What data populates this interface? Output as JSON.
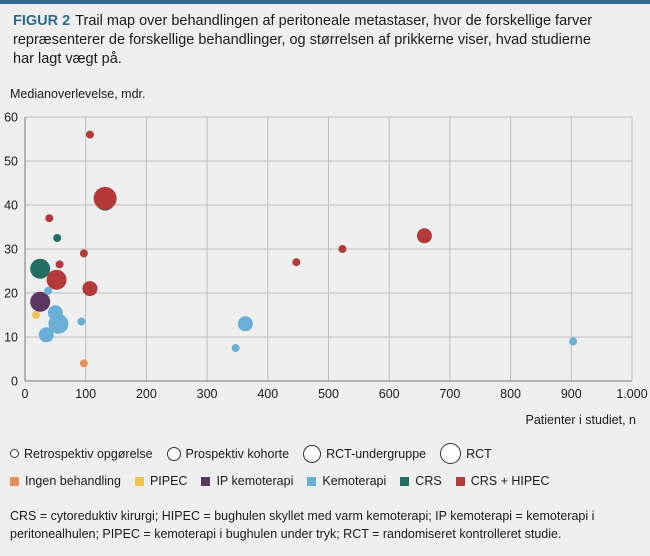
{
  "caption": {
    "figure_label": "FIGUR 2",
    "text": "Trail map over behandlingen af peritoneale metastaser, hvor de forskellige farver repræsenterer de forskellige behandlinger, og størrelsen af prikkerne viser, hvad studierne har lagt vægt på."
  },
  "footnote": "CRS = cytoreduktiv kirurgi; HIPEC = bughulen skyllet med varm kemoterapi; IP kemoterapi = kemoterapi i peritonealhulen; PIPEC = kemoterapi i bughulen under tryk; RCT = randomiseret kontrolleret studie.",
  "colors": {
    "Ingen behandling": "#e8915a",
    "PIPEC": "#f0c453",
    "IP kemoterapi": "#5a3663",
    "Kemoterapi": "#6aafd6",
    "CRS": "#236e60",
    "CRS + HIPEC": "#b43a3a"
  },
  "chart_data": {
    "type": "scatter",
    "xlabel": "Patienter i studiet, n",
    "ylabel": "Medianoverlevelse, mdr.",
    "xlim": [
      0,
      1000
    ],
    "ylim": [
      0,
      60
    ],
    "x_ticks": [
      "0",
      "100",
      "200",
      "300",
      "400",
      "500",
      "600",
      "700",
      "800",
      "900",
      "1.000"
    ],
    "y_ticks": [
      "0",
      "10",
      "20",
      "30",
      "40",
      "50",
      "60"
    ],
    "grid": true,
    "size_legend": [
      {
        "label": "Retrospektiv opgørelse",
        "size": 1
      },
      {
        "label": "Prospektiv kohorte",
        "size": 2
      },
      {
        "label": "RCT-undergruppe",
        "size": 3
      },
      {
        "label": "RCT",
        "size": 4
      }
    ],
    "color_legend": [
      "Ingen behandling",
      "PIPEC",
      "IP kemoterapi",
      "Kemoterapi",
      "CRS",
      "CRS + HIPEC"
    ],
    "points": [
      {
        "x": 107,
        "y": 56,
        "size": 1,
        "treatment": "CRS + HIPEC"
      },
      {
        "x": 40,
        "y": 37,
        "size": 1,
        "treatment": "CRS + HIPEC"
      },
      {
        "x": 97,
        "y": 29,
        "size": 1,
        "treatment": "CRS + HIPEC"
      },
      {
        "x": 57,
        "y": 26.5,
        "size": 1,
        "treatment": "CRS + HIPEC"
      },
      {
        "x": 447,
        "y": 27,
        "size": 1,
        "treatment": "CRS + HIPEC"
      },
      {
        "x": 523,
        "y": 30,
        "size": 1,
        "treatment": "CRS + HIPEC"
      },
      {
        "x": 658,
        "y": 33,
        "size": 2,
        "treatment": "CRS + HIPEC"
      },
      {
        "x": 107,
        "y": 21,
        "size": 2,
        "treatment": "CRS + HIPEC"
      },
      {
        "x": 52,
        "y": 23,
        "size": 3,
        "treatment": "CRS + HIPEC"
      },
      {
        "x": 53,
        "y": 32.5,
        "size": 1,
        "treatment": "CRS"
      },
      {
        "x": 132,
        "y": 41,
        "size": 3,
        "treatment": "CRS"
      },
      {
        "x": 132,
        "y": 41.5,
        "size": 4,
        "treatment": "CRS + HIPEC"
      },
      {
        "x": 25,
        "y": 25.5,
        "size": 3,
        "treatment": "CRS"
      },
      {
        "x": 25,
        "y": 18,
        "size": 3,
        "treatment": "IP kemoterapi"
      },
      {
        "x": 18,
        "y": 15,
        "size": 1,
        "treatment": "PIPEC"
      },
      {
        "x": 38,
        "y": 20.5,
        "size": 1,
        "treatment": "Kemoterapi"
      },
      {
        "x": 50,
        "y": 15.5,
        "size": 2,
        "treatment": "Kemoterapi"
      },
      {
        "x": 55,
        "y": 13,
        "size": 3,
        "treatment": "Kemoterapi"
      },
      {
        "x": 35,
        "y": 10.5,
        "size": 2,
        "treatment": "Kemoterapi"
      },
      {
        "x": 93,
        "y": 13.5,
        "size": 1,
        "treatment": "Kemoterapi"
      },
      {
        "x": 363,
        "y": 13,
        "size": 2,
        "treatment": "Kemoterapi"
      },
      {
        "x": 347,
        "y": 7.5,
        "size": 1,
        "treatment": "Kemoterapi"
      },
      {
        "x": 903,
        "y": 9,
        "size": 1,
        "treatment": "Kemoterapi"
      },
      {
        "x": 97,
        "y": 4,
        "size": 1,
        "treatment": "Ingen behandling"
      }
    ]
  }
}
